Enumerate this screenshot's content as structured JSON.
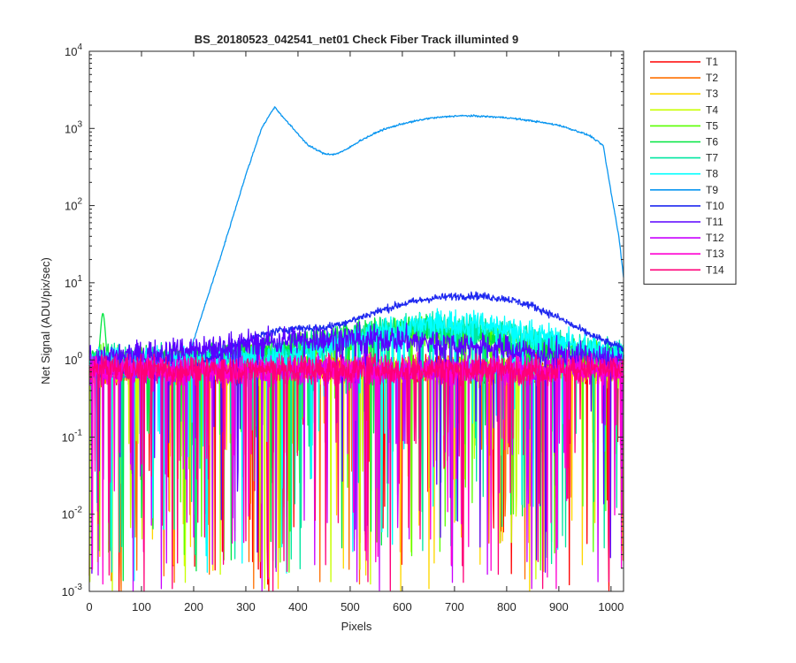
{
  "chart_data": {
    "type": "line",
    "title": "BS_20180523_042541_net01   Check Fiber      Track illuminted 9",
    "xlabel": "Pixels",
    "ylabel": "Net Signal (ADU/pix/sec)",
    "xlim": [
      0,
      1024
    ],
    "ylim": [
      0.001,
      10000
    ],
    "yscale": "log",
    "grid": false,
    "legend_position": "outside-right-top",
    "x_ticks": [
      "0",
      "100",
      "200",
      "300",
      "400",
      "500",
      "600",
      "700",
      "800",
      "900",
      "1000"
    ],
    "y_ticks": [
      {
        "base": "10",
        "exp": "-3"
      },
      {
        "base": "10",
        "exp": "-2"
      },
      {
        "base": "10",
        "exp": "-1"
      },
      {
        "base": "10",
        "exp": "0"
      },
      {
        "base": "10",
        "exp": "1"
      },
      {
        "base": "10",
        "exp": "2"
      },
      {
        "base": "10",
        "exp": "3"
      },
      {
        "base": "10",
        "exp": "4"
      }
    ],
    "series": [
      {
        "name": "T1",
        "color": "#ff0000"
      },
      {
        "name": "T2",
        "color": "#ff7000"
      },
      {
        "name": "T3",
        "color": "#ffd700"
      },
      {
        "name": "T4",
        "color": "#c8ff00"
      },
      {
        "name": "T5",
        "color": "#5aff00"
      },
      {
        "name": "T6",
        "color": "#00e640"
      },
      {
        "name": "T7",
        "color": "#00e6a0"
      },
      {
        "name": "T8",
        "color": "#00ffff"
      },
      {
        "name": "T9",
        "color": "#0a96f0",
        "x": [
          0,
          100,
          180,
          200,
          250,
          300,
          330,
          355,
          380,
          420,
          450,
          470,
          490,
          520,
          560,
          600,
          650,
          700,
          720,
          750,
          800,
          850,
          900,
          940,
          960,
          985,
          1000,
          1015,
          1024
        ],
        "y": [
          0.6,
          0.6,
          0.6,
          1.8,
          20,
          250,
          1000,
          1900,
          1200,
          600,
          470,
          460,
          520,
          700,
          950,
          1150,
          1350,
          1450,
          1460,
          1440,
          1380,
          1250,
          1100,
          900,
          800,
          600,
          150,
          40,
          12
        ]
      },
      {
        "name": "T10",
        "color": "#1e28f0",
        "x": [
          0,
          100,
          200,
          250,
          300,
          350,
          400,
          450,
          500,
          550,
          600,
          650,
          700,
          740,
          800,
          850,
          900,
          950,
          1000,
          1024
        ],
        "y": [
          0.7,
          0.7,
          0.8,
          1.2,
          1.8,
          2.3,
          2.6,
          2.6,
          3.2,
          4.2,
          5.3,
          6.2,
          6.7,
          6.8,
          6.2,
          5.0,
          3.5,
          2.3,
          1.6,
          1.4
        ]
      },
      {
        "name": "T11",
        "color": "#5a00ff"
      },
      {
        "name": "T12",
        "color": "#c800ff"
      },
      {
        "name": "T13",
        "color": "#ff00d2"
      },
      {
        "name": "T14",
        "color": "#ff0078"
      }
    ]
  }
}
